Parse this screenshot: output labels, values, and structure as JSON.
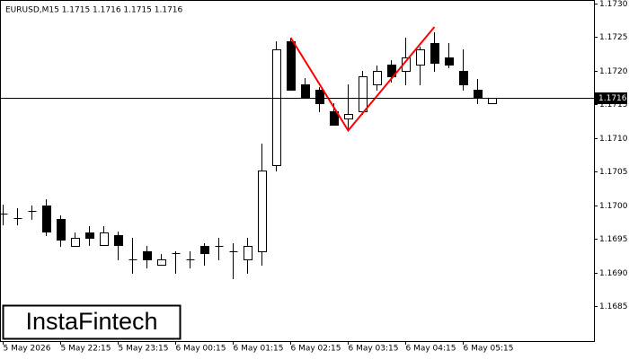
{
  "logo": "InstaFintech",
  "chart_data": {
    "type": "candlestick",
    "title": "EURUSD,M15  1.1715 1.1716 1.1715 1.1716",
    "categories": [
      "5 May 2026",
      null,
      null,
      null,
      "5 May 22:15",
      null,
      null,
      null,
      "5 May 23:15",
      null,
      null,
      null,
      "6 May 00:15",
      null,
      null,
      null,
      "6 May 01:15",
      null,
      null,
      null,
      "6 May 02:15",
      null,
      null,
      null,
      "6 May 03:15",
      null,
      null,
      null,
      "6 May 04:15",
      null,
      null,
      null,
      "6 May 05:15",
      null,
      null
    ],
    "open": [
      1.16988,
      1.16981,
      1.16991,
      1.16999,
      1.1698,
      1.1694,
      1.1696,
      1.16941,
      1.16956,
      1.1692,
      1.16931,
      1.16911,
      1.16929,
      1.1692,
      1.1694,
      1.1694,
      1.16932,
      1.1692,
      1.16931,
      1.1706,
      1.17243,
      1.17179,
      1.17171,
      1.1714,
      1.17129,
      1.1714,
      1.17179,
      1.17209,
      1.17199,
      1.17209,
      1.17241,
      1.17219,
      1.17199,
      1.17171,
      1.17151
    ],
    "high": [
      1.17001,
      1.16996,
      1.16999,
      1.17009,
      1.16985,
      1.16959,
      1.16969,
      1.16969,
      1.16961,
      1.16951,
      1.16939,
      1.16928,
      1.16932,
      1.16932,
      1.16943,
      1.16951,
      1.16943,
      1.16951,
      1.17091,
      1.17243,
      1.17249,
      1.17189,
      1.17176,
      1.17151,
      1.17179,
      1.17199,
      1.17208,
      1.17215,
      1.17249,
      1.17236,
      1.17257,
      1.17241,
      1.17231,
      1.17188,
      1.1716
    ],
    "low": [
      1.16972,
      1.16972,
      1.16979,
      1.16956,
      1.1694,
      1.16939,
      1.16941,
      1.16941,
      1.16919,
      1.169,
      1.16908,
      1.16911,
      1.169,
      1.16908,
      1.16911,
      1.16919,
      1.16891,
      1.169,
      1.16911,
      1.17051,
      1.17171,
      1.17161,
      1.1714,
      1.1712,
      1.17111,
      1.17135,
      1.17171,
      1.17183,
      1.17179,
      1.17179,
      1.17199,
      1.17205,
      1.17171,
      1.17151,
      1.17151
    ],
    "close": [
      1.16988,
      1.16981,
      1.16991,
      1.16961,
      1.16949,
      1.16952,
      1.16951,
      1.1696,
      1.16941,
      1.1692,
      1.1692,
      1.1692,
      1.16929,
      1.1692,
      1.16929,
      1.1694,
      1.16932,
      1.1694,
      1.17051,
      1.17231,
      1.17171,
      1.17161,
      1.17151,
      1.1712,
      1.17135,
      1.17191,
      1.17199,
      1.17191,
      1.17219,
      1.17231,
      1.17211,
      1.17209,
      1.17179,
      1.1716,
      1.1716
    ],
    "up_color": "#ffffff",
    "down_color": "#000000",
    "current_price": 1.1716,
    "pattern_line": {
      "color": "#ff0000",
      "x": [
        20,
        24,
        30
      ],
      "y": [
        1.17249,
        1.17111,
        1.17265
      ]
    },
    "ylim": [
      1.16798,
      1.17305
    ],
    "yticks": [
      1.1685,
      {
        "value": 1.169,
        "label": "1.1690"
      },
      1.1695,
      {
        "value": 1.17,
        "label": "1.1700"
      },
      1.1705,
      {
        "value": 1.171,
        "label": "1.1710"
      },
      1.1715,
      {
        "value": 1.172,
        "label": "1.1720"
      },
      1.1725,
      {
        "value": 1.173,
        "label": "1.1730"
      }
    ]
  }
}
